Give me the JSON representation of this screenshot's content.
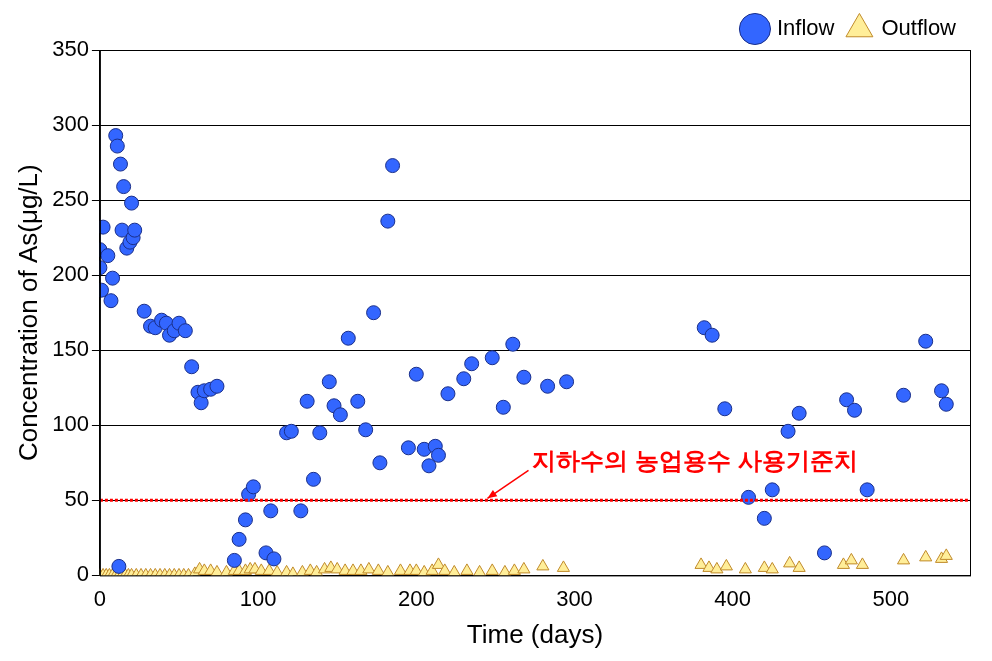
{
  "chart_data": {
    "type": "scatter",
    "x_label": "Time (days)",
    "y_label": "Concentration of As(μg/L)",
    "xlim": [
      0,
      550
    ],
    "xticks": [
      0,
      100,
      200,
      300,
      400,
      500
    ],
    "ylim": [
      0,
      350
    ],
    "yticks": [
      0,
      50,
      100,
      150,
      200,
      250,
      300,
      350
    ],
    "grid": "y",
    "legend": "upper right",
    "annotations": [
      {
        "type": "hline",
        "y": 50,
        "label": "지하수의 농업용수 사용기준치",
        "color": "#ff0000",
        "line_style": "dotted"
      }
    ],
    "series": [
      {
        "name": "Inflow",
        "color": "#3366ff",
        "marker": "circle",
        "x": [
          0,
          0,
          1,
          2,
          5,
          7,
          8,
          10,
          11,
          12,
          13,
          14,
          15,
          17,
          19,
          20,
          21,
          22,
          28,
          32,
          35,
          39,
          42,
          44,
          47,
          50,
          54,
          58,
          62,
          64,
          66,
          70,
          74,
          85,
          88,
          92,
          94,
          97,
          105,
          108,
          110,
          118,
          121,
          127,
          131,
          135,
          139,
          145,
          148,
          152,
          157,
          163,
          168,
          173,
          177,
          182,
          185,
          195,
          200,
          205,
          208,
          212,
          214,
          220,
          230,
          235,
          248,
          255,
          261,
          268,
          283,
          295,
          382,
          387,
          395,
          410,
          420,
          425,
          435,
          442,
          458,
          472,
          477,
          485,
          508,
          522,
          532,
          535
        ],
        "values": [
          217,
          205,
          190,
          232,
          213,
          183,
          198,
          293,
          286,
          6,
          274,
          230,
          259,
          218,
          222,
          248,
          225,
          230,
          176,
          166,
          165,
          170,
          168,
          160,
          163,
          168,
          163,
          139,
          122,
          115,
          123,
          124,
          126,
          10,
          24,
          37,
          54,
          59,
          15,
          43,
          11,
          95,
          96,
          43,
          116,
          64,
          95,
          129,
          113,
          107,
          158,
          116,
          97,
          175,
          75,
          236,
          273,
          85,
          134,
          84,
          73,
          86,
          80,
          121,
          131,
          141,
          145,
          112,
          154,
          132,
          126,
          129,
          165,
          160,
          111,
          52,
          38,
          57,
          96,
          108,
          15,
          117,
          110,
          57,
          120,
          156,
          123,
          114
        ]
      },
      {
        "name": "Outflow",
        "color": "#ffee99",
        "marker": "triangle",
        "x": [
          0,
          2,
          4,
          6,
          8,
          10,
          12,
          14,
          16,
          18,
          20,
          23,
          26,
          29,
          32,
          35,
          38,
          41,
          44,
          47,
          50,
          53,
          56,
          60,
          63,
          66,
          70,
          74,
          80,
          85,
          88,
          92,
          95,
          98,
          102,
          107,
          112,
          118,
          122,
          128,
          133,
          137,
          142,
          146,
          150,
          155,
          160,
          165,
          170,
          176,
          182,
          190,
          196,
          200,
          205,
          210,
          214,
          218,
          224,
          232,
          240,
          248,
          256,
          262,
          268,
          280,
          293,
          380,
          385,
          390,
          396,
          408,
          420,
          425,
          436,
          442,
          470,
          475,
          482,
          508,
          522,
          532,
          535
        ],
        "values": [
          0,
          0,
          0,
          0,
          0,
          0,
          0,
          0,
          0,
          0,
          0,
          0,
          0,
          0,
          0,
          0,
          0,
          0,
          0,
          0,
          0,
          0,
          0,
          1,
          4,
          3,
          3,
          2,
          2,
          3,
          3,
          3,
          4,
          4,
          3,
          3,
          2,
          2,
          1,
          2,
          3,
          2,
          4,
          5,
          4,
          3,
          3,
          3,
          4,
          3,
          2,
          3,
          3,
          3,
          2,
          3,
          7,
          3,
          2,
          3,
          2,
          3,
          2,
          3,
          4,
          6,
          5,
          7,
          5,
          4,
          6,
          4,
          5,
          4,
          8,
          5,
          7,
          10,
          7,
          10,
          12,
          11,
          13
        ]
      }
    ]
  }
}
